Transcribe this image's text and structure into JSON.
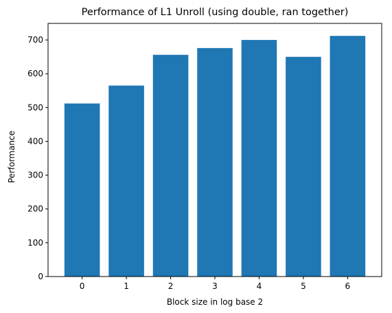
{
  "chart_data": {
    "type": "bar",
    "title": "Performance of L1 Unroll (using double, ran together)",
    "xlabel": "Block size in log base 2",
    "ylabel": "Performance",
    "categories": [
      "0",
      "1",
      "2",
      "3",
      "4",
      "5",
      "6"
    ],
    "values": [
      512,
      565,
      656,
      676,
      700,
      650,
      712
    ],
    "ylim": [
      0,
      749
    ],
    "yticks": [
      0,
      100,
      200,
      300,
      400,
      500,
      600,
      700
    ],
    "bar_color": "#1f77b4",
    "grid": false,
    "legend": "none"
  }
}
